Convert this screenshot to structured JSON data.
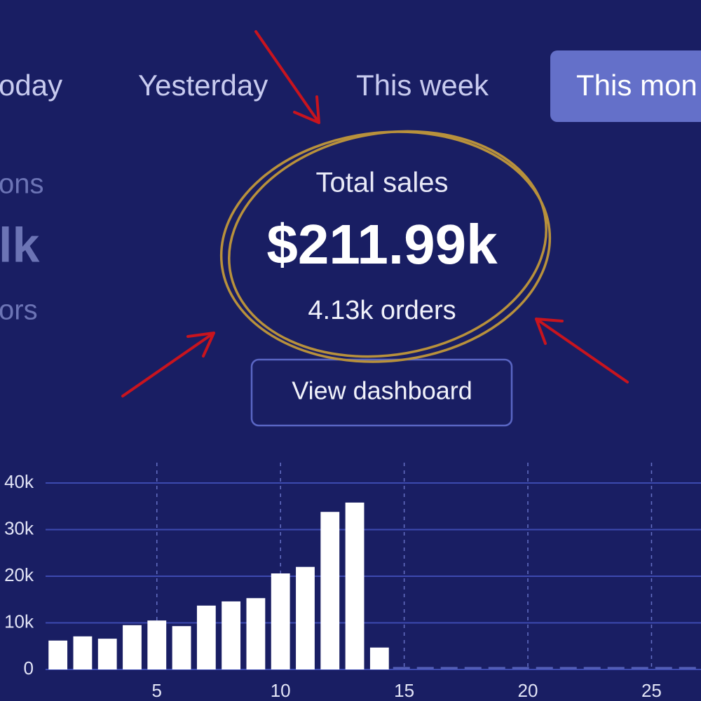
{
  "tabs": [
    "oday",
    "Yesterday",
    "This week",
    "This mon"
  ],
  "left_stats": [
    "ons",
    "lk",
    "ors"
  ],
  "summary": {
    "label": "Total sales",
    "value": "$211.99k",
    "orders": "4.13k orders"
  },
  "button": "View dashboard",
  "chart_data": {
    "type": "bar",
    "color": "#ffffff",
    "x": [
      1,
      2,
      3,
      4,
      5,
      6,
      7,
      8,
      9,
      10,
      11,
      12,
      13,
      14
    ],
    "values": [
      6200,
      7100,
      6600,
      9500,
      10500,
      9300,
      13700,
      14600,
      15300,
      20600,
      22000,
      33800,
      35800,
      4700
    ],
    "xlim": [
      0.5,
      27
    ],
    "xticks": [
      5,
      10,
      15,
      20,
      25
    ],
    "ylim": [
      0,
      40000
    ],
    "yticks": [
      {
        "value": 0,
        "label": "0"
      },
      {
        "value": 10000,
        "label": "10k"
      },
      {
        "value": 20000,
        "label": "20k"
      },
      {
        "value": 30000,
        "label": "30k"
      },
      {
        "value": 40000,
        "label": "40k"
      }
    ],
    "grid": true
  }
}
